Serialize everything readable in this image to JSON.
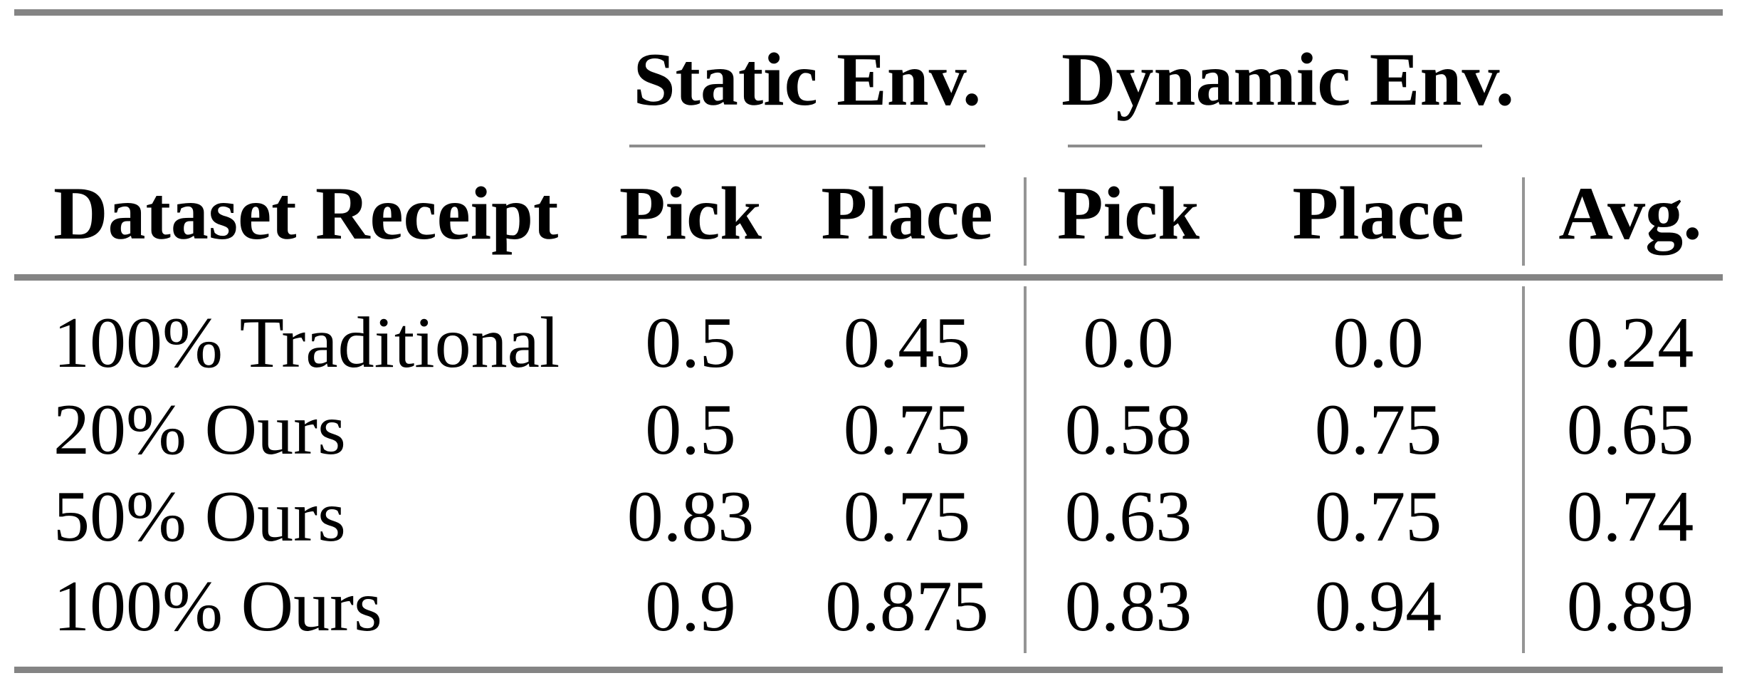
{
  "table": {
    "group_headers": [
      {
        "label": "Static Env."
      },
      {
        "label": "Dynamic Env."
      }
    ],
    "columns": {
      "row_label": "Dataset Receipt",
      "static_pick": "Pick",
      "static_place": "Place",
      "dynamic_pick": "Pick",
      "dynamic_place": "Place",
      "avg": "Avg."
    },
    "rows": [
      {
        "label": "100% Traditional",
        "values": [
          "0.5",
          "0.45",
          "0.0",
          "0.0",
          "0.24"
        ]
      },
      {
        "label": "20% Ours",
        "values": [
          "0.5",
          "0.75",
          "0.58",
          "0.75",
          "0.65"
        ]
      },
      {
        "label": "50% Ours",
        "values": [
          "0.83",
          "0.75",
          "0.63",
          "0.75",
          "0.74"
        ]
      },
      {
        "label": "100% Ours",
        "values": [
          "0.9",
          "0.875",
          "0.83",
          "0.94",
          "0.89"
        ]
      }
    ],
    "colors": {
      "rule_gray": "#848484",
      "divider_gray": "#959595",
      "text": "#000000",
      "background": "#ffffff"
    }
  },
  "chart_data": {
    "type": "table",
    "title": "",
    "column_groups": [
      "Static Env.",
      "Dynamic Env."
    ],
    "columns": [
      "Dataset Receipt",
      "Static Pick",
      "Static Place",
      "Dynamic Pick",
      "Dynamic Place",
      "Avg."
    ],
    "rows": [
      [
        "100% Traditional",
        0.5,
        0.45,
        0.0,
        0.0,
        0.24
      ],
      [
        "20% Ours",
        0.5,
        0.75,
        0.58,
        0.75,
        0.65
      ],
      [
        "50% Ours",
        0.83,
        0.75,
        0.63,
        0.75,
        0.74
      ],
      [
        "100% Ours",
        0.9,
        0.875,
        0.83,
        0.94,
        0.89
      ]
    ]
  }
}
